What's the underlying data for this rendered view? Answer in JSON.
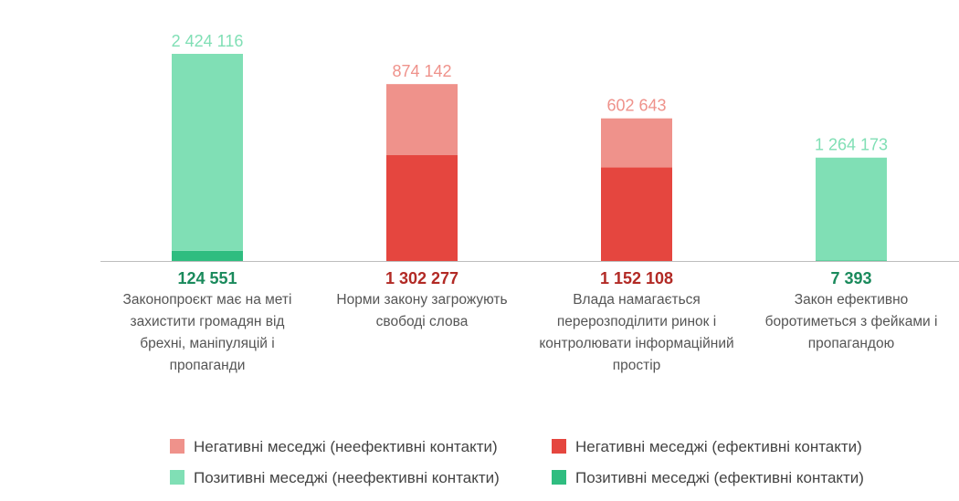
{
  "chart_data": {
    "type": "bar",
    "stacked": true,
    "categories": [
      [
        "Законопроєкт має на меті",
        "захистити громадян від",
        "брехні, маніпуляцій і",
        "пропаганди"
      ],
      [
        "Норми закону загрожують",
        "свободі слова"
      ],
      [
        "Влада намагається",
        "перерозподілити ринок і",
        "контролювати інформаційний",
        "простір"
      ],
      [
        "Закон ефективно",
        "боротиметься з фейками і",
        "пропагандою"
      ]
    ],
    "bars": [
      {
        "effective": 124551,
        "effective_label": "124 551",
        "ineffective": 2424116,
        "ineffective_label": "2 424 116",
        "kind": "positive"
      },
      {
        "effective": 1302277,
        "effective_label": "1 302 277",
        "ineffective": 874142,
        "ineffective_label": "874 142",
        "kind": "negative"
      },
      {
        "effective": 1152108,
        "effective_label": "1 152 108",
        "ineffective": 602643,
        "ineffective_label": "602 643",
        "kind": "negative"
      },
      {
        "effective": 7393,
        "effective_label": "7 393",
        "ineffective": 1264173,
        "ineffective_label": "1 264 173",
        "kind": "positive"
      }
    ],
    "colors": {
      "negative_ineffective": "#ef928b",
      "negative_effective": "#e5463f",
      "positive_ineffective": "#80dfb5",
      "positive_effective": "#2fbd80",
      "positive_label": "#1a8a5c",
      "positive_label_light": "#80dfb5",
      "negative_label_dark": "#b22a25",
      "negative_label_light": "#ef928b"
    },
    "legend": {
      "placement": "bottom",
      "items": [
        {
          "label": "Негативні меседжі (неефективні контакти)",
          "color_key": "negative_ineffective"
        },
        {
          "label": "Негативні меседжі (ефективні контакти)",
          "color_key": "negative_effective"
        },
        {
          "label": "Позитивні  меседжі (неефективні контакти)",
          "color_key": "positive_ineffective"
        },
        {
          "label": "Позитивні меседжі (ефективні контакти)",
          "color_key": "positive_effective"
        }
      ]
    }
  }
}
